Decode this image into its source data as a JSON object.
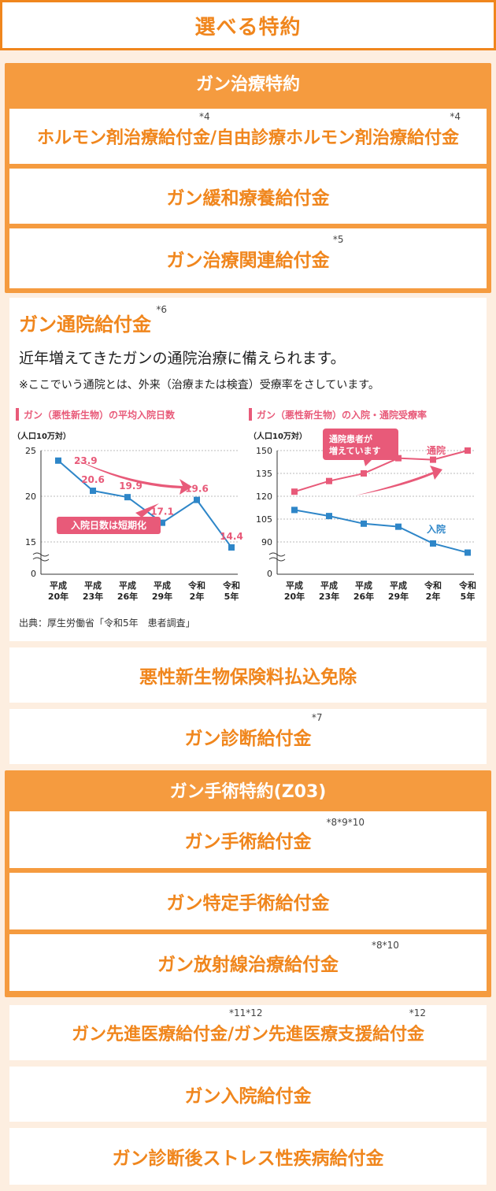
{
  "header": {
    "title": "選べる特約"
  },
  "cancer_treatment": {
    "title": "ガン治療特約",
    "items": [
      {
        "label_a": "ホルモン剤治療給付金",
        "sup_a": "*4",
        "sep": "/",
        "label_b": "自由診療ホルモン剤治療給付金",
        "sup_b": "*4"
      },
      {
        "label": "ガン緩和療養給付金"
      },
      {
        "label": "ガン治療関連給付金",
        "sup": "*5"
      }
    ]
  },
  "outpatient": {
    "title": "ガン通院給付金",
    "sup": "*6",
    "description": "近年増えてきたガンの通院治療に備えられます。",
    "note": "※ここでいう通院とは、外来（治療または検査）受療率をさしています。",
    "source": "出典：厚生労働省「令和5年　患者調査」"
  },
  "chart_data": [
    {
      "type": "line",
      "title": "ガン（悪性新生物）の平均入院日数",
      "ylabel": "（人口10万対）",
      "categories": [
        "平成20年",
        "平成23年",
        "平成26年",
        "平成29年",
        "令和2年",
        "令和5年"
      ],
      "values": [
        23.9,
        20.6,
        19.9,
        17.1,
        19.6,
        14.4
      ],
      "ylim": [
        0,
        25
      ],
      "yticks": [
        "0",
        "15",
        "20",
        "25"
      ],
      "annotation": "入院日数は短期化",
      "color": "#e85a79"
    },
    {
      "type": "line",
      "title": "ガン（悪性新生物）の入院・通院受療率",
      "ylabel": "（人口10万対）",
      "categories": [
        "平成20年",
        "平成23年",
        "平成26年",
        "平成29年",
        "令和2年",
        "令和5年"
      ],
      "series": [
        {
          "name": "通院",
          "values": [
            123,
            130,
            135,
            145,
            144,
            150
          ],
          "color": "#e85a79"
        },
        {
          "name": "入院",
          "values": [
            111,
            107,
            102,
            100,
            89,
            83
          ],
          "color": "#2e86c8"
        }
      ],
      "ylim": [
        0,
        150
      ],
      "yticks": [
        "0",
        "90",
        "105",
        "120",
        "135",
        "150"
      ],
      "annotation_lines": [
        "通院患者が",
        "増えています"
      ]
    }
  ],
  "other_items": [
    {
      "label": "悪性新生物保険料払込免除"
    },
    {
      "label": "ガン診断給付金",
      "sup": "*7"
    }
  ],
  "surgery": {
    "title": "ガン手術特約(Z03)",
    "items": [
      {
        "label": "ガン手術給付金",
        "sup": "*8*9*10"
      },
      {
        "label": "ガン特定手術給付金"
      },
      {
        "label": "ガン放射線治療給付金",
        "sup": "*8*10"
      }
    ]
  },
  "bottom_items": [
    {
      "label_a": "ガン先進医療給付金",
      "sup_a": "*11*12",
      "sep": "/",
      "label_b": "ガン先進医療支援給付金",
      "sup_b": "*12"
    },
    {
      "label": "ガン入院給付金"
    },
    {
      "label": "ガン診断後ストレス性疾病給付金"
    }
  ],
  "colors": {
    "accent": "#f0861d",
    "group_bg": "#f59b3f",
    "page_bg": "#fdeee0",
    "pink": "#e85a79",
    "blue": "#2e86c8"
  }
}
